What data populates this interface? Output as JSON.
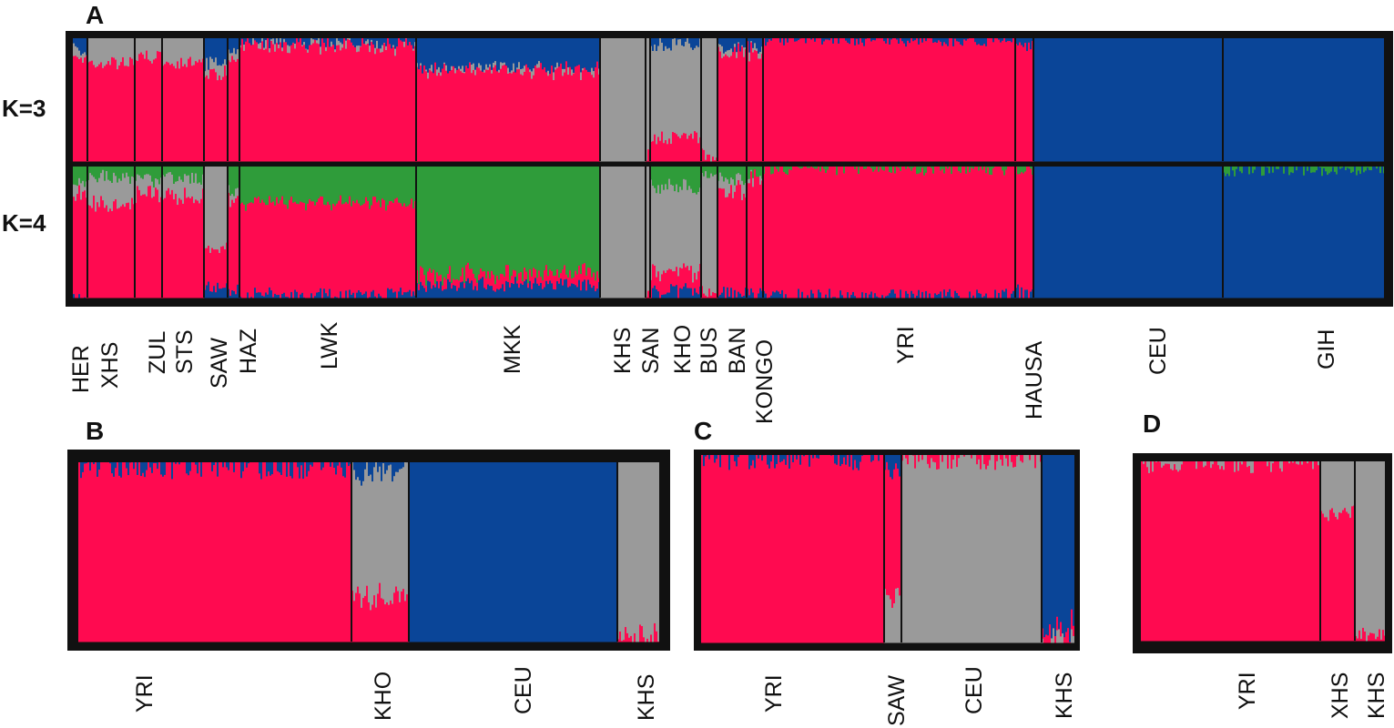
{
  "colors": {
    "red": "#ff0a50",
    "blue": "#0a4598",
    "grey": "#9a9a9a",
    "green": "#2f9c3a",
    "frame": "#111111"
  },
  "panels": [
    {
      "label": "A",
      "rows": [
        "K=3",
        "K=4"
      ],
      "populations": [
        {
          "name": "HER",
          "k3": [
            0.85,
            0.1,
            0.05,
            0
          ],
          "k4": [
            0.8,
            0.02,
            0.08,
            0.1
          ]
        },
        {
          "name": "XHS",
          "k3": [
            0.8,
            0.0,
            0.2,
            0
          ],
          "k4": [
            0.72,
            0.0,
            0.2,
            0.08
          ]
        },
        {
          "name": "ZUL",
          "k3": [
            0.85,
            0.0,
            0.15,
            0
          ],
          "k4": [
            0.78,
            0.0,
            0.12,
            0.1
          ]
        },
        {
          "name": "STS",
          "k3": [
            0.8,
            0.0,
            0.2,
            0
          ],
          "k4": [
            0.75,
            0.0,
            0.15,
            0.1
          ]
        },
        {
          "name": "SAW",
          "k3": [
            0.7,
            0.2,
            0.1,
            0
          ],
          "k4": [
            0.3,
            0.1,
            0.6,
            0.0
          ]
        },
        {
          "name": "HAZ",
          "k3": [
            0.85,
            0.1,
            0.05,
            0
          ],
          "k4": [
            0.7,
            0.05,
            0.05,
            0.2
          ]
        },
        {
          "name": "LWK",
          "k3": [
            0.95,
            0.04,
            0.01,
            0
          ],
          "k4": [
            0.7,
            0.02,
            0.0,
            0.28
          ]
        },
        {
          "name": "MKK",
          "k3": [
            0.75,
            0.24,
            0.01,
            0
          ],
          "k4": [
            0.08,
            0.1,
            0.0,
            0.82
          ]
        },
        {
          "name": "KHS",
          "k3": [
            0.0,
            0.0,
            1.0,
            0
          ],
          "k4": [
            0.0,
            0.0,
            1.0,
            0.0
          ]
        },
        {
          "name": "SAN",
          "k3": [
            0.05,
            0.0,
            0.95,
            0
          ],
          "k4": [
            0.05,
            0.0,
            0.95,
            0.0
          ]
        },
        {
          "name": "KHO",
          "k3": [
            0.2,
            0.05,
            0.75,
            0
          ],
          "k4": [
            0.15,
            0.05,
            0.65,
            0.15
          ]
        },
        {
          "name": "BUS",
          "k3": [
            0.05,
            0.0,
            0.95,
            0
          ],
          "k4": [
            0.05,
            0.0,
            0.9,
            0.05
          ]
        },
        {
          "name": "BAN",
          "k3": [
            0.88,
            0.07,
            0.05,
            0
          ],
          "k4": [
            0.75,
            0.05,
            0.1,
            0.1
          ]
        },
        {
          "name": "KONGO",
          "k3": [
            0.9,
            0.08,
            0.02,
            0
          ],
          "k4": [
            0.9,
            0.03,
            0.02,
            0.05
          ]
        },
        {
          "name": "YRI",
          "k3": [
            0.99,
            0.01,
            0.0,
            0
          ],
          "k4": [
            0.98,
            0.01,
            0.0,
            0.01
          ]
        },
        {
          "name": "HAUSA",
          "k3": [
            0.93,
            0.07,
            0.0,
            0
          ],
          "k4": [
            0.92,
            0.05,
            0.0,
            0.03
          ]
        },
        {
          "name": "CEU",
          "k3": [
            0.0,
            1.0,
            0.0,
            0
          ],
          "k4": [
            0.0,
            1.0,
            0.0,
            0.0
          ]
        },
        {
          "name": "GIH",
          "k3": [
            0.0,
            1.0,
            0.0,
            0
          ],
          "k4": [
            0.0,
            0.98,
            0.0,
            0.02
          ]
        }
      ]
    },
    {
      "label": "B",
      "populations": [
        {
          "name": "YRI",
          "mix": [
            0.99,
            0.01,
            0.0
          ]
        },
        {
          "name": "KHO",
          "mix": [
            0.25,
            0.05,
            0.7
          ]
        },
        {
          "name": "CEU",
          "mix": [
            0.0,
            1.0,
            0.0
          ]
        },
        {
          "name": "KHS",
          "mix": [
            0.02,
            0.0,
            0.98
          ]
        }
      ]
    },
    {
      "label": "C",
      "populations": [
        {
          "name": "YRI",
          "mix": [
            0.0,
            0.01,
            0.99
          ]
        },
        {
          "name": "SAW",
          "mix": [
            0.25,
            0.1,
            0.65
          ]
        },
        {
          "name": "CEU",
          "mix": [
            0.99,
            0.0,
            0.01
          ]
        },
        {
          "name": "KHS",
          "mix": [
            0.01,
            0.95,
            0.04
          ]
        }
      ]
    },
    {
      "label": "D",
      "populations": [
        {
          "name": "YRI",
          "mix": [
            0.99,
            0.0,
            0.01
          ]
        },
        {
          "name": "XHS",
          "mix": [
            0.7,
            0.0,
            0.3
          ]
        },
        {
          "name": "KHS",
          "mix": [
            0.02,
            0.0,
            0.98
          ]
        }
      ]
    }
  ]
}
